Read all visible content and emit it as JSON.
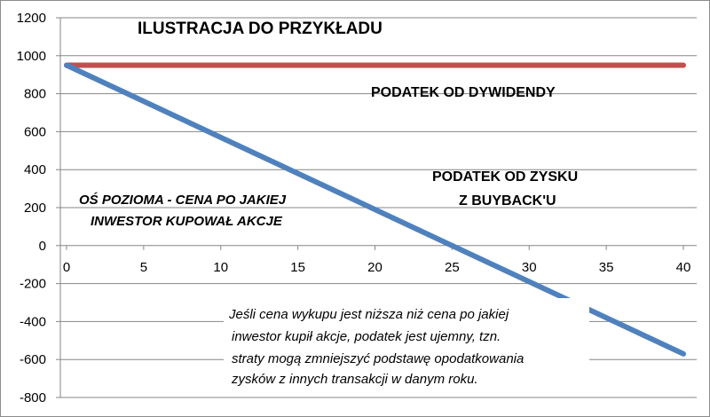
{
  "chart_data": {
    "type": "line",
    "title": "ILUSTRACJA  DO PRZYKŁADU",
    "x": [
      0,
      40
    ],
    "xlim": [
      -2,
      41
    ],
    "ylim": [
      -800,
      1200
    ],
    "x_ticks": [
      0,
      5,
      10,
      15,
      20,
      25,
      30,
      35,
      40
    ],
    "y_ticks": [
      -800,
      -600,
      -400,
      -200,
      0,
      200,
      400,
      600,
      800,
      1000,
      1200
    ],
    "grid": "horizontal",
    "series": [
      {
        "name": "PODATEK OD DYWIDENDY",
        "color": "#c0504d",
        "values": [
          950,
          950
        ]
      },
      {
        "name": "PODATEK OD ZYSKU Z BUYBACK'U",
        "color": "#4f81bd",
        "values": [
          950,
          -570
        ]
      }
    ],
    "annotations": {
      "dividend_label": "PODATEK OD DYWIDENDY",
      "buyback_label_1": "PODATEK OD ZYSKU",
      "buyback_label_2": "Z BUYBACK'U",
      "axis_note_1": "OŚ POZIOMA - CENA PO JAKIEJ",
      "axis_note_2": "INWESTOR KUPOWAŁ AKCJE",
      "note_lines": [
        "Jeśli cena wykupu jest niższa niż cena po jakiej",
        "inwestor kupił akcje, podatek jest ujemny, tzn.",
        "straty mogą zmniejszyć podstawę opodatkowania",
        "zysków z innych transakcji w danym roku."
      ]
    }
  }
}
